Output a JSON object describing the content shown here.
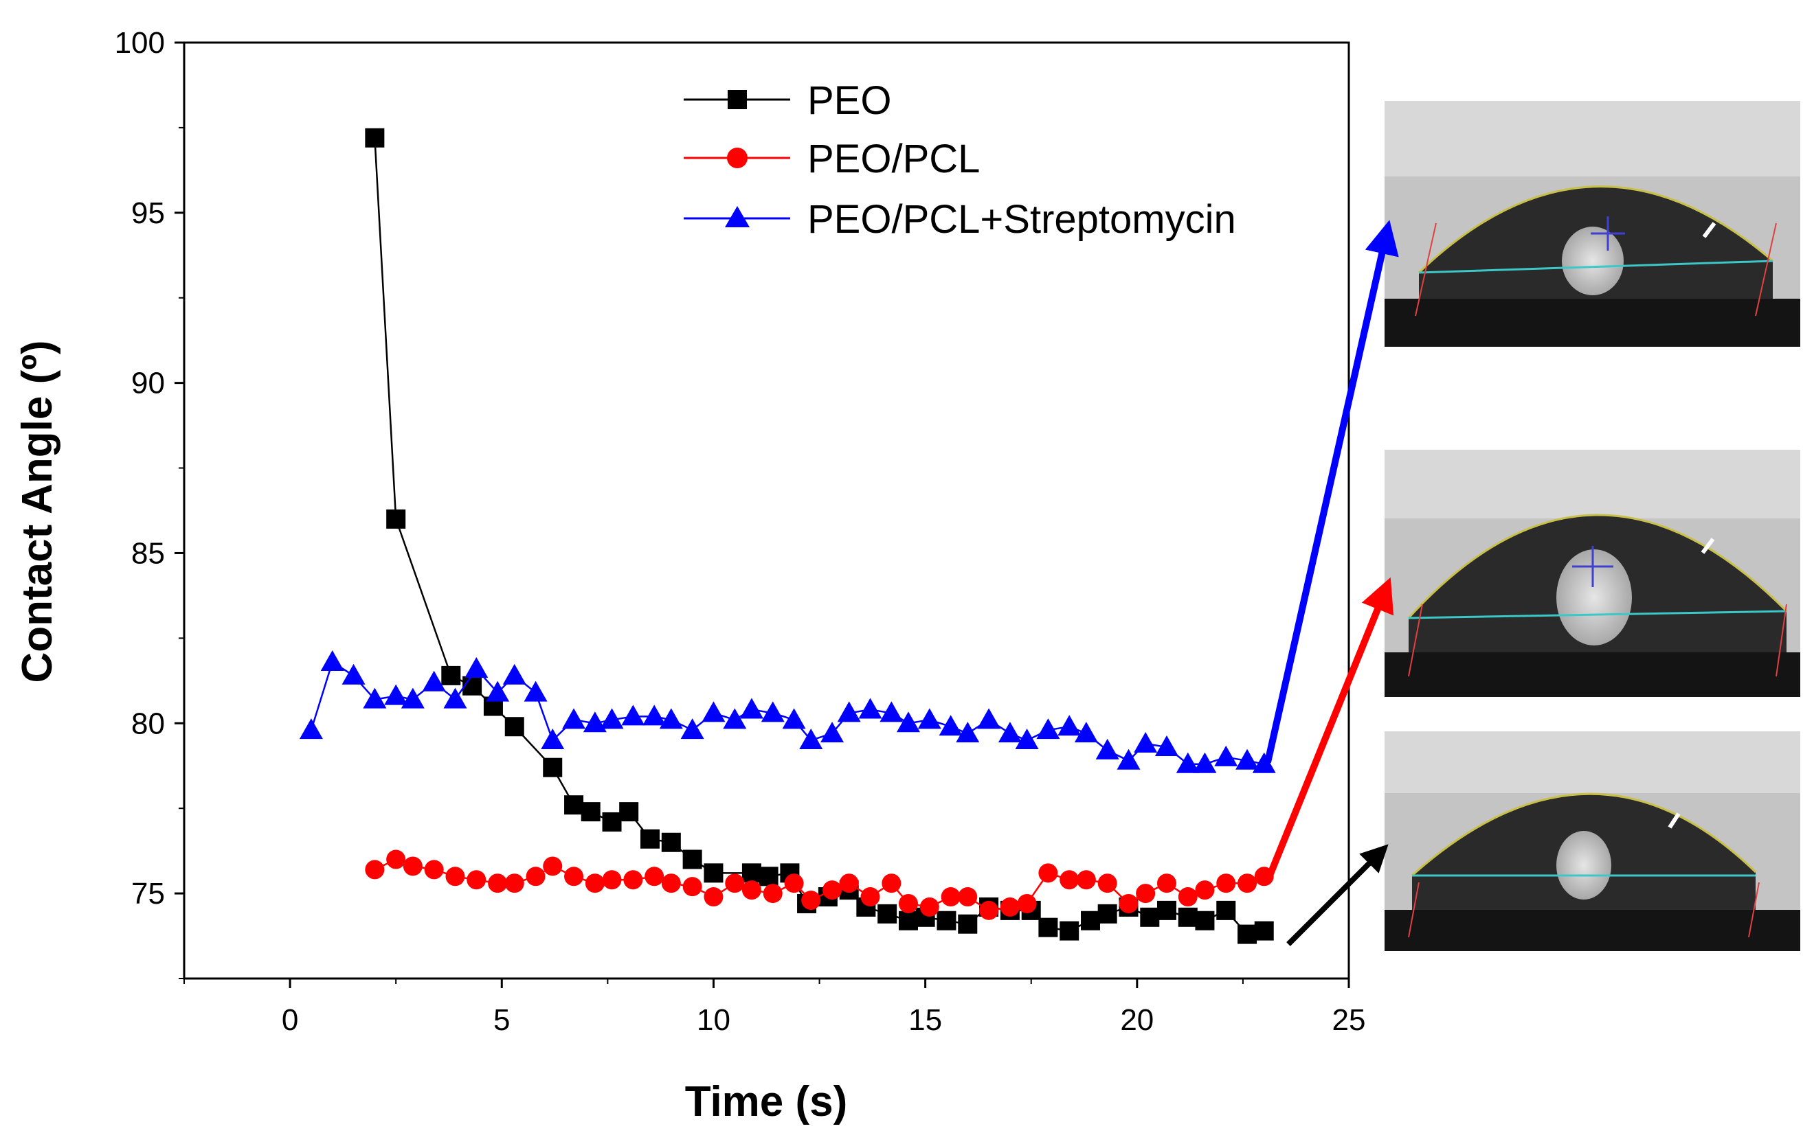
{
  "chart_data": {
    "type": "line",
    "title": "",
    "xlabel": "Time (s)",
    "ylabel": "Contact Angle (º)",
    "xlim": [
      -2.5,
      25
    ],
    "ylim": [
      72.5,
      100
    ],
    "xticks": [
      0,
      5,
      10,
      15,
      20,
      25
    ],
    "yticks": [
      75,
      80,
      85,
      90,
      95,
      100
    ],
    "xtick_labels": [
      "0",
      "5",
      "10",
      "15",
      "20",
      "25"
    ],
    "ytick_labels": [
      "75",
      "80",
      "85",
      "90",
      "95",
      "100"
    ],
    "legend_position": "top-center",
    "series": [
      {
        "name": "PEO",
        "color": "#000000",
        "marker": "square",
        "x": [
          2.0,
          2.5,
          3.8,
          4.3,
          4.8,
          5.3,
          6.2,
          6.7,
          7.1,
          7.6,
          8.0,
          8.5,
          9.0,
          9.5,
          10.0,
          10.9,
          11.3,
          11.8,
          12.2,
          12.7,
          13.2,
          13.6,
          14.1,
          14.6,
          15.0,
          15.5,
          16.0,
          16.5,
          17.0,
          17.5,
          17.9,
          18.4,
          18.9,
          19.3,
          19.8,
          20.3,
          20.7,
          21.2,
          21.6,
          22.1,
          22.6,
          23.0
        ],
        "y": [
          97.2,
          86.0,
          81.4,
          81.1,
          80.5,
          79.9,
          78.7,
          77.6,
          77.4,
          77.1,
          77.4,
          76.6,
          76.5,
          76.0,
          75.6,
          75.6,
          75.5,
          75.6,
          74.7,
          74.9,
          75.1,
          74.6,
          74.4,
          74.2,
          74.3,
          74.2,
          74.1,
          74.6,
          74.5,
          74.5,
          74.0,
          73.9,
          74.2,
          74.4,
          74.6,
          74.3,
          74.5,
          74.3,
          74.2,
          74.5,
          73.8,
          73.9
        ]
      },
      {
        "name": "PEO/PCL",
        "color": "#ff0000",
        "marker": "circle",
        "x": [
          2.0,
          2.5,
          2.9,
          3.4,
          3.9,
          4.4,
          4.9,
          5.3,
          5.8,
          6.2,
          6.7,
          7.2,
          7.6,
          8.1,
          8.6,
          9.0,
          9.5,
          10.0,
          10.5,
          10.9,
          11.4,
          11.9,
          12.3,
          12.8,
          13.2,
          13.7,
          14.2,
          14.6,
          15.1,
          15.6,
          16.0,
          16.5,
          17.0,
          17.4,
          17.9,
          18.4,
          18.8,
          19.3,
          19.8,
          20.2,
          20.7,
          21.2,
          21.6,
          22.1,
          22.6,
          23.0
        ],
        "y": [
          75.7,
          76.0,
          75.8,
          75.7,
          75.5,
          75.4,
          75.3,
          75.3,
          75.5,
          75.8,
          75.5,
          75.3,
          75.4,
          75.4,
          75.5,
          75.3,
          75.2,
          74.9,
          75.3,
          75.1,
          75.0,
          75.3,
          74.8,
          75.1,
          75.3,
          74.9,
          75.3,
          74.7,
          74.6,
          74.9,
          74.9,
          74.5,
          74.6,
          74.7,
          75.6,
          75.4,
          75.4,
          75.3,
          74.7,
          75.0,
          75.3,
          74.9,
          75.1,
          75.3,
          75.3,
          75.5
        ]
      },
      {
        "name": "PEO/PCL+Streptomycin",
        "color": "#0000ff",
        "marker": "triangle",
        "x": [
          0.5,
          1.0,
          1.5,
          2.0,
          2.5,
          2.9,
          3.4,
          3.9,
          4.4,
          4.9,
          5.3,
          5.8,
          6.2,
          6.7,
          7.2,
          7.6,
          8.1,
          8.6,
          9.0,
          9.5,
          10.0,
          10.5,
          10.9,
          11.4,
          11.9,
          12.3,
          12.8,
          13.2,
          13.7,
          14.2,
          14.6,
          15.1,
          15.6,
          16.0,
          16.5,
          17.0,
          17.4,
          17.9,
          18.4,
          18.8,
          19.3,
          19.8,
          20.2,
          20.7,
          21.2,
          21.6,
          22.1,
          22.6,
          23.0
        ],
        "y": [
          79.8,
          81.8,
          81.4,
          80.7,
          80.8,
          80.7,
          81.2,
          80.7,
          81.6,
          80.9,
          81.4,
          80.9,
          79.5,
          80.1,
          80.0,
          80.1,
          80.2,
          80.2,
          80.1,
          79.8,
          80.3,
          80.1,
          80.4,
          80.3,
          80.1,
          79.5,
          79.7,
          80.3,
          80.4,
          80.3,
          80.0,
          80.1,
          79.9,
          79.7,
          80.1,
          79.7,
          79.5,
          79.8,
          79.9,
          79.7,
          79.2,
          78.9,
          79.4,
          79.3,
          78.8,
          78.8,
          79.0,
          78.9,
          78.8
        ]
      }
    ]
  },
  "insets": [
    {
      "name": "droplet-photo-streptomycin",
      "series": "PEO/PCL+Streptomycin",
      "color": "#0000ff"
    },
    {
      "name": "droplet-photo-peo-pcl",
      "series": "PEO/PCL",
      "color": "#ff0000"
    },
    {
      "name": "droplet-photo-peo",
      "series": "PEO",
      "color": "#000000"
    }
  ]
}
